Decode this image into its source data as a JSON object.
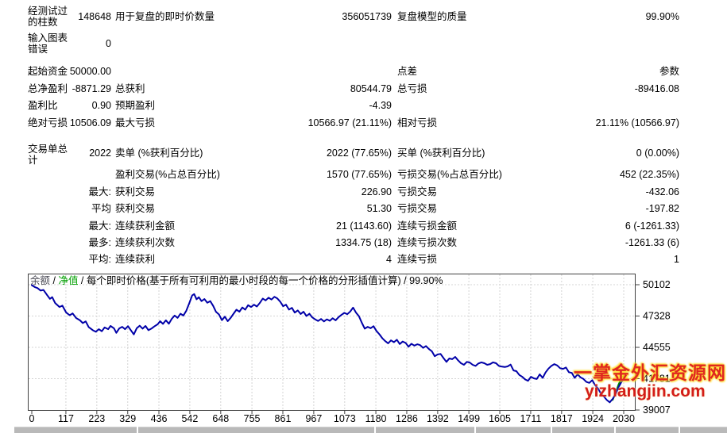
{
  "report": {
    "rows": [
      {
        "c1l": "经测试过的柱数",
        "c1v": "148648",
        "c2l": "用于复盘的即时价数量",
        "c2v": "356051739",
        "c3l": "复盘模型的质量",
        "c3v": "99.90%"
      },
      {
        "c1l": "输入图表错误",
        "c1v": "0"
      },
      {
        "c1l": "起始资金",
        "c1v": "50000.00",
        "c3l": "点差",
        "c3v": "参数"
      },
      {
        "c1l": "总净盈利",
        "c1v": "-8871.29",
        "c2l": "总获利",
        "c2v": "80544.79",
        "c3l": "总亏损",
        "c3v": "-89416.08"
      },
      {
        "c1l": "盈利比",
        "c1v": "0.90",
        "c2l": "预期盈利",
        "c2v": "-4.39"
      },
      {
        "c1l": "绝对亏损",
        "c1v": "10506.09",
        "c2l": "最大亏损",
        "c2v": "10566.97 (21.11%)",
        "c3l": "相对亏损",
        "c3v": "21.11% (10566.97)"
      },
      {
        "c1l": "交易单总计",
        "c1v": "2022",
        "c2l": "卖单 (%获利百分比)",
        "c2v": "2022 (77.65%)",
        "c3l": "买单 (%获利百分比)",
        "c3v": "0 (0.00%)"
      },
      {
        "c2l": "盈利交易(%占总百分比)",
        "c2v": "1570 (77.65%)",
        "c3l": "亏损交易(%占总百分比)",
        "c3v": "452 (22.35%)"
      },
      {
        "c1v": "最大:",
        "c2l": "获利交易",
        "c2v": "226.90",
        "c3l": "亏损交易",
        "c3v": "-432.06"
      },
      {
        "c1v": "平均",
        "c2l": "获利交易",
        "c2v": "51.30",
        "c3l": "亏损交易",
        "c3v": "-197.82"
      },
      {
        "c1v": "最大:",
        "c2l": "连续获利金额",
        "c2v": "21 (1143.60)",
        "c3l": "连续亏损金额",
        "c3v": "6 (-1261.33)"
      },
      {
        "c1v": "最多:",
        "c2l": "连续获利次数",
        "c2v": "1334.75 (18)",
        "c3l": "连续亏损次数",
        "c3v": "-1261.33 (6)"
      },
      {
        "c1v": "平均:",
        "c2l": "连续获利",
        "c2v": "4",
        "c3l": "连续亏损",
        "c3v": "1"
      }
    ]
  },
  "legend": {
    "balance_label": "余额",
    "separator": " / ",
    "equity_label": "净值",
    "description": "每个即时价格(基于所有可利用的最小时段的每一个价格的分形插值计算)",
    "quality": "99.90%"
  },
  "watermark": {
    "line1": "一掌金外汇资源网",
    "line2": "yizhangjin.com"
  },
  "colors": {
    "balance_line": "#0000a8",
    "equity_line": "#008000",
    "equity_label": "#00a000",
    "balance_label": "#4a4a55",
    "grid": "#d4d4d4",
    "axis": "#404040",
    "watermark_red": "#e02820"
  },
  "chart_data": {
    "type": "line",
    "title": "余额 / 净值 / 每个即时价格(基于所有可利用的最小时段的每一个价格的分形插值计算) / 99.90%",
    "xlabel": "",
    "ylabel": "",
    "xlim": [
      0,
      2030
    ],
    "ylim": [
      39007,
      50102
    ],
    "grid": true,
    "legend_position": "top-left-inside",
    "x_ticks": [
      0,
      117,
      223,
      329,
      436,
      542,
      648,
      755,
      861,
      967,
      1073,
      1180,
      1286,
      1392,
      1499,
      1605,
      1711,
      1817,
      1924,
      2030
    ],
    "y_ticks": [
      50102,
      47328,
      44555,
      41781,
      39007
    ],
    "series": [
      {
        "name": "净值",
        "color": "#008000",
        "points": [
          [
            1992,
            39900
          ],
          [
            2002,
            40500
          ],
          [
            2012,
            41250
          ],
          [
            2022,
            41800
          ],
          [
            2030,
            42050
          ]
        ]
      },
      {
        "name": "余额",
        "color": "#0000a8",
        "points": [
          [
            0,
            50060
          ],
          [
            10,
            49900
          ],
          [
            20,
            49800
          ],
          [
            30,
            49580
          ],
          [
            40,
            49640
          ],
          [
            52,
            49200
          ],
          [
            62,
            48850
          ],
          [
            70,
            49000
          ],
          [
            80,
            48480
          ],
          [
            95,
            48130
          ],
          [
            105,
            48250
          ],
          [
            118,
            47640
          ],
          [
            130,
            47400
          ],
          [
            140,
            47560
          ],
          [
            152,
            47150
          ],
          [
            165,
            46950
          ],
          [
            175,
            46700
          ],
          [
            185,
            46850
          ],
          [
            195,
            46350
          ],
          [
            210,
            46060
          ],
          [
            220,
            45940
          ],
          [
            230,
            46160
          ],
          [
            240,
            45980
          ],
          [
            250,
            46320
          ],
          [
            262,
            46160
          ],
          [
            270,
            46450
          ],
          [
            282,
            46230
          ],
          [
            290,
            45840
          ],
          [
            300,
            46230
          ],
          [
            310,
            46370
          ],
          [
            320,
            46160
          ],
          [
            330,
            46430
          ],
          [
            340,
            46060
          ],
          [
            350,
            45700
          ],
          [
            360,
            46250
          ],
          [
            370,
            46470
          ],
          [
            380,
            46210
          ],
          [
            390,
            46450
          ],
          [
            400,
            46080
          ],
          [
            410,
            46210
          ],
          [
            420,
            46400
          ],
          [
            432,
            46600
          ],
          [
            440,
            46870
          ],
          [
            450,
            46630
          ],
          [
            460,
            46950
          ],
          [
            470,
            46650
          ],
          [
            480,
            47080
          ],
          [
            490,
            47370
          ],
          [
            500,
            47170
          ],
          [
            510,
            47530
          ],
          [
            520,
            47370
          ],
          [
            530,
            47800
          ],
          [
            540,
            48460
          ],
          [
            550,
            49150
          ],
          [
            557,
            49270
          ],
          [
            565,
            48810
          ],
          [
            573,
            48990
          ],
          [
            582,
            48650
          ],
          [
            592,
            48830
          ],
          [
            602,
            48510
          ],
          [
            612,
            48650
          ],
          [
            622,
            48230
          ],
          [
            632,
            47690
          ],
          [
            642,
            47470
          ],
          [
            652,
            46960
          ],
          [
            662,
            47270
          ],
          [
            672,
            46870
          ],
          [
            682,
            47170
          ],
          [
            692,
            47540
          ],
          [
            702,
            47890
          ],
          [
            712,
            47710
          ],
          [
            722,
            48090
          ],
          [
            732,
            47890
          ],
          [
            742,
            48290
          ],
          [
            752,
            48130
          ],
          [
            762,
            48330
          ],
          [
            772,
            48170
          ],
          [
            782,
            48490
          ],
          [
            792,
            48870
          ],
          [
            802,
            48710
          ],
          [
            812,
            48950
          ],
          [
            822,
            48790
          ],
          [
            832,
            49030
          ],
          [
            842,
            48890
          ],
          [
            852,
            48600
          ],
          [
            862,
            48200
          ],
          [
            872,
            48330
          ],
          [
            882,
            47900
          ],
          [
            892,
            48050
          ],
          [
            902,
            47630
          ],
          [
            912,
            47830
          ],
          [
            922,
            47510
          ],
          [
            932,
            47710
          ],
          [
            942,
            47330
          ],
          [
            952,
            47530
          ],
          [
            962,
            47210
          ],
          [
            972,
            47030
          ],
          [
            982,
            46890
          ],
          [
            992,
            47070
          ],
          [
            1002,
            46850
          ],
          [
            1012,
            47030
          ],
          [
            1022,
            46910
          ],
          [
            1032,
            47130
          ],
          [
            1042,
            46950
          ],
          [
            1052,
            47230
          ],
          [
            1062,
            47430
          ],
          [
            1072,
            47610
          ],
          [
            1082,
            47490
          ],
          [
            1092,
            47730
          ],
          [
            1102,
            48070
          ],
          [
            1112,
            47630
          ],
          [
            1122,
            47310
          ],
          [
            1132,
            46730
          ],
          [
            1142,
            46210
          ],
          [
            1152,
            46370
          ],
          [
            1162,
            46250
          ],
          [
            1172,
            46430
          ],
          [
            1182,
            46010
          ],
          [
            1192,
            45710
          ],
          [
            1202,
            45370
          ],
          [
            1212,
            45110
          ],
          [
            1222,
            44910
          ],
          [
            1232,
            45170
          ],
          [
            1242,
            45010
          ],
          [
            1252,
            45230
          ],
          [
            1262,
            44850
          ],
          [
            1272,
            45070
          ],
          [
            1282,
            44950
          ],
          [
            1292,
            44610
          ],
          [
            1302,
            44870
          ],
          [
            1312,
            44710
          ],
          [
            1322,
            44830
          ],
          [
            1332,
            44750
          ],
          [
            1342,
            44510
          ],
          [
            1352,
            44670
          ],
          [
            1362,
            44410
          ],
          [
            1372,
            44210
          ],
          [
            1382,
            43770
          ],
          [
            1392,
            43930
          ],
          [
            1402,
            43970
          ],
          [
            1412,
            43610
          ],
          [
            1422,
            43270
          ],
          [
            1432,
            43570
          ],
          [
            1442,
            43510
          ],
          [
            1452,
            43710
          ],
          [
            1462,
            43410
          ],
          [
            1472,
            43150
          ],
          [
            1482,
            43010
          ],
          [
            1492,
            43270
          ],
          [
            1502,
            43210
          ],
          [
            1512,
            43010
          ],
          [
            1522,
            42910
          ],
          [
            1532,
            43130
          ],
          [
            1542,
            43230
          ],
          [
            1552,
            43150
          ],
          [
            1562,
            43010
          ],
          [
            1572,
            43070
          ],
          [
            1582,
            43230
          ],
          [
            1592,
            43150
          ],
          [
            1602,
            42910
          ],
          [
            1612,
            42850
          ],
          [
            1622,
            42810
          ],
          [
            1632,
            42870
          ],
          [
            1642,
            43030
          ],
          [
            1652,
            42510
          ],
          [
            1662,
            42450
          ],
          [
            1672,
            42110
          ],
          [
            1682,
            41950
          ],
          [
            1692,
            41710
          ],
          [
            1702,
            41590
          ],
          [
            1712,
            41950
          ],
          [
            1722,
            41810
          ],
          [
            1732,
            41750
          ],
          [
            1742,
            42170
          ],
          [
            1752,
            41850
          ],
          [
            1762,
            42330
          ],
          [
            1772,
            42670
          ],
          [
            1782,
            42910
          ],
          [
            1792,
            43070
          ],
          [
            1802,
            42950
          ],
          [
            1812,
            42710
          ],
          [
            1822,
            42650
          ],
          [
            1832,
            42770
          ],
          [
            1842,
            42350
          ],
          [
            1852,
            42290
          ],
          [
            1862,
            41850
          ],
          [
            1872,
            42170
          ],
          [
            1882,
            41890
          ],
          [
            1892,
            41750
          ],
          [
            1902,
            41490
          ],
          [
            1912,
            41410
          ],
          [
            1922,
            41650
          ],
          [
            1932,
            41210
          ],
          [
            1942,
            40910
          ],
          [
            1952,
            40450
          ],
          [
            1962,
            40210
          ],
          [
            1972,
            39890
          ],
          [
            1982,
            39690
          ],
          [
            1992,
            39990
          ],
          [
            2002,
            40390
          ],
          [
            2012,
            41010
          ],
          [
            2022,
            41490
          ],
          [
            2030,
            41710
          ]
        ]
      }
    ]
  }
}
